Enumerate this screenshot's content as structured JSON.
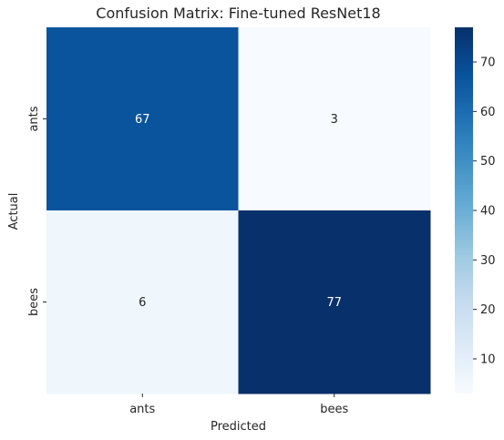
{
  "chart_data": {
    "type": "heatmap",
    "title": "Confusion Matrix: Fine-tuned ResNet18",
    "xlabel": "Predicted",
    "ylabel": "Actual",
    "x_categories": [
      "ants",
      "bees"
    ],
    "y_categories": [
      "ants",
      "bees"
    ],
    "values": [
      [
        67,
        3
      ],
      [
        6,
        77
      ]
    ],
    "annotations": [
      "67",
      "3",
      "6",
      "77"
    ],
    "colormap": "Blues",
    "color_range": [
      3,
      77
    ],
    "colorbar_ticks": [
      10,
      20,
      30,
      40,
      50,
      60,
      70
    ],
    "colorbar_tick_labels": [
      "10",
      "20",
      "30",
      "40",
      "50",
      "60",
      "70"
    ],
    "grid": false
  }
}
